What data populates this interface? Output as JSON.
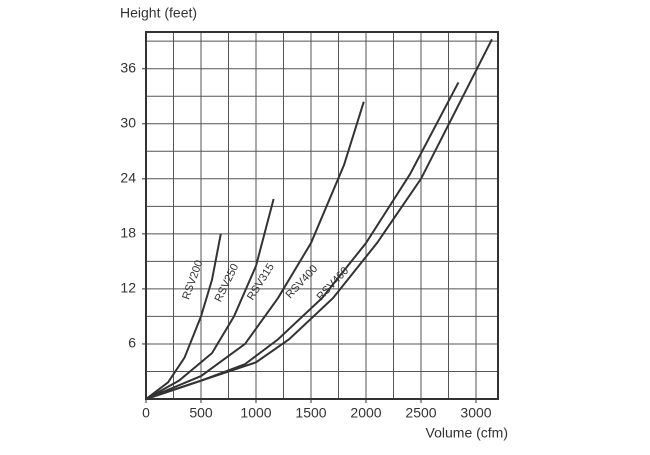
{
  "chart_data": {
    "type": "line",
    "y_label": "Height (feet)",
    "x_label": "Volume (cfm)",
    "xlim": [
      0,
      3200
    ],
    "ylim": [
      0,
      40
    ],
    "xticks": [
      0,
      500,
      1000,
      1500,
      2000,
      2500,
      3000
    ],
    "yticks": [
      6,
      12,
      18,
      24,
      30,
      36
    ],
    "grid": true,
    "x_grid_step": 250,
    "y_grid_step": 3,
    "series": [
      {
        "name": "RSV200",
        "color": "#333333",
        "x": [
          0,
          200,
          350,
          500,
          600,
          680
        ],
        "values": [
          0,
          1.8,
          4.5,
          9,
          13,
          18
        ]
      },
      {
        "name": "RSV250",
        "color": "#333333",
        "x": [
          0,
          300,
          600,
          800,
          1000,
          1160
        ],
        "values": [
          0,
          2,
          5,
          9,
          14.5,
          21.8
        ]
      },
      {
        "name": "RSV315",
        "color": "#333333",
        "x": [
          0,
          500,
          900,
          1200,
          1500,
          1800,
          1980
        ],
        "values": [
          0,
          2.5,
          6,
          11,
          17,
          25.5,
          32.4
        ]
      },
      {
        "name": "RSV400",
        "color": "#333333",
        "x": [
          0,
          500,
          900,
          1200,
          1600,
          2000,
          2400,
          2840
        ],
        "values": [
          0,
          2,
          3.8,
          6.5,
          11,
          17,
          24.5,
          34.5
        ]
      },
      {
        "name": "RSV460",
        "color": "#333333",
        "x": [
          0,
          500,
          1000,
          1300,
          1700,
          2100,
          2500,
          3145
        ],
        "values": [
          0,
          2,
          4,
          6.5,
          11,
          17,
          24,
          39.2
        ]
      }
    ]
  }
}
